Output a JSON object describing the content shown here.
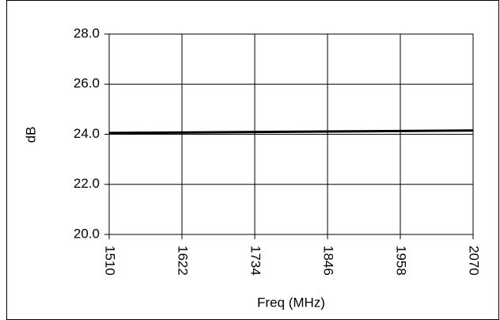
{
  "chart_data": {
    "type": "line",
    "x_label": "Freq (MHz)",
    "y_label": "dB",
    "x": [
      1510,
      2070
    ],
    "series": [
      {
        "color": "#000000",
        "values": [
          24.05,
          24.15
        ]
      }
    ],
    "xlim": [
      1510,
      2070
    ],
    "xticks": [
      1510,
      1622,
      1734,
      1846,
      1958,
      2070
    ],
    "ylim": [
      20,
      28
    ],
    "yticks": [
      {
        "value": 20,
        "label": "20.0"
      },
      {
        "value": 22,
        "label": "22.0"
      },
      {
        "value": 24,
        "label": "24.0"
      },
      {
        "value": 26,
        "label": "26.0"
      },
      {
        "value": 28,
        "label": "28.0"
      }
    ],
    "grid": true
  }
}
